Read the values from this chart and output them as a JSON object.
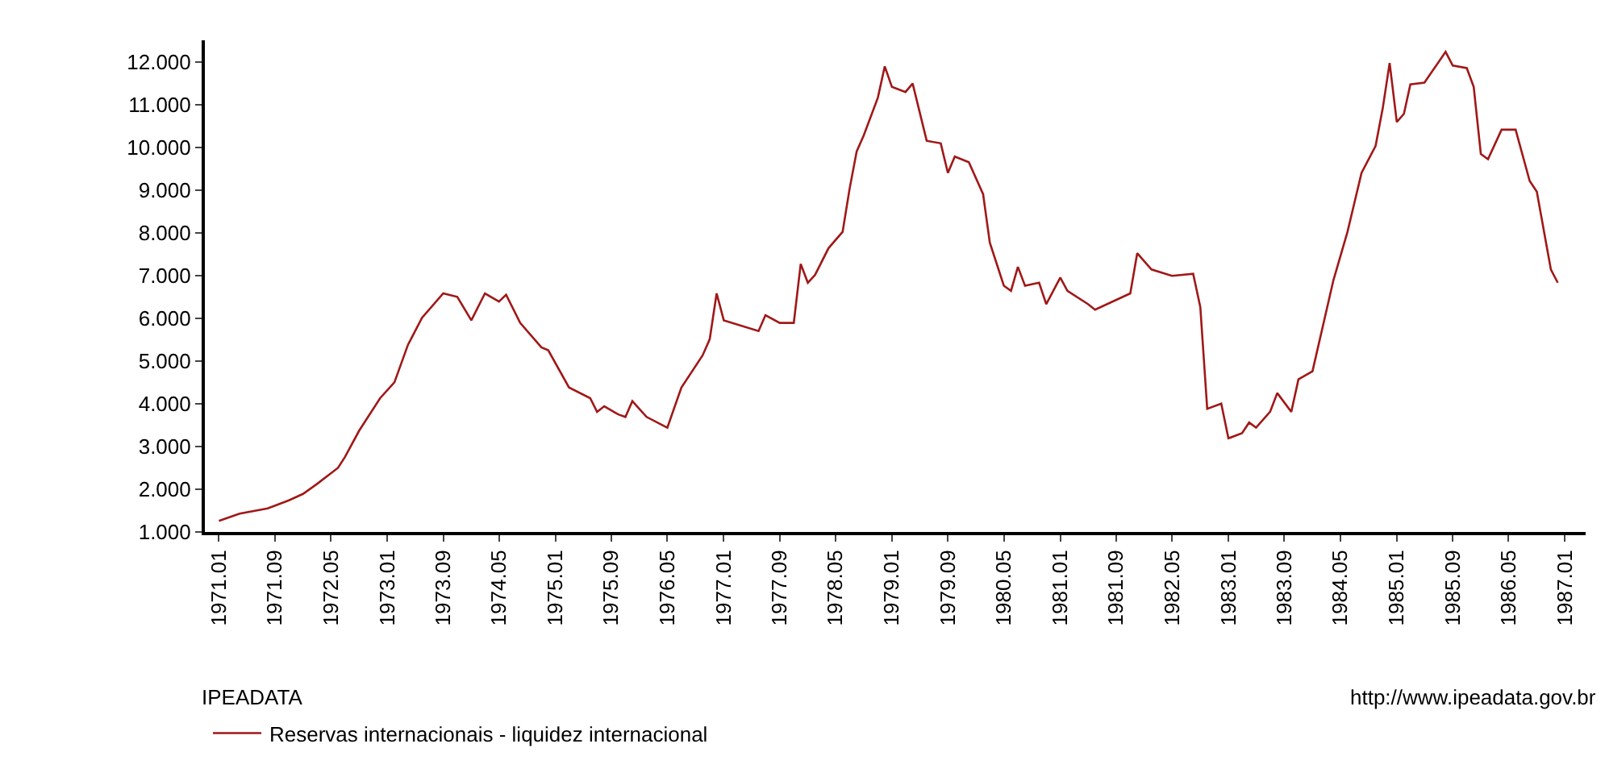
{
  "chart_data": {
    "type": "line",
    "annotations": [
      "IPEADATA",
      "http://www.ipeadata.gov.br"
    ],
    "x": [
      "1971-01",
      "1971-04",
      "1971-08",
      "1971-11",
      "1972-01",
      "1972-03",
      "1972-06",
      "1972-07",
      "1972-09",
      "1972-12",
      "1973-02",
      "1973-04",
      "1973-06",
      "1973-09",
      "1973-11",
      "1974-01",
      "1974-03",
      "1974-05",
      "1974-06",
      "1974-08",
      "1974-11",
      "1974-12",
      "1975-03",
      "1975-06",
      "1975-07",
      "1975-08",
      "1975-10",
      "1975-11",
      "1975-12",
      "1976-02",
      "1976-05",
      "1976-07",
      "1976-10",
      "1976-11",
      "1976-12",
      "1977-01",
      "1977-06",
      "1977-07",
      "1977-09",
      "1977-11",
      "1977-12",
      "1978-01",
      "1978-02",
      "1978-04",
      "1978-06",
      "1978-07",
      "1978-08",
      "1978-09",
      "1978-11",
      "1978-12",
      "1979-01",
      "1979-03",
      "1979-04",
      "1979-06",
      "1979-08",
      "1979-09",
      "1979-10",
      "1979-12",
      "1980-02",
      "1980-03",
      "1980-05",
      "1980-06",
      "1980-07",
      "1980-08",
      "1980-10",
      "1980-11",
      "1981-01",
      "1981-02",
      "1981-05",
      "1981-06",
      "1981-11",
      "1981-12",
      "1982-02",
      "1982-05",
      "1982-08",
      "1982-09",
      "1982-10",
      "1982-12",
      "1983-01",
      "1983-03",
      "1983-04",
      "1983-05",
      "1983-07",
      "1983-08",
      "1983-10",
      "1983-11",
      "1984-01",
      "1984-04",
      "1984-06",
      "1984-08",
      "1984-10",
      "1984-11",
      "1984-12",
      "1985-01",
      "1985-02",
      "1985-03",
      "1985-05",
      "1985-08",
      "1985-09",
      "1985-11",
      "1985-12",
      "1986-01",
      "1986-02",
      "1986-04",
      "1986-06",
      "1986-08",
      "1986-09",
      "1986-11",
      "1986-12"
    ],
    "series": [
      {
        "name": "Reservas internacionais - liquidez internacional",
        "color": "#a01818",
        "values": [
          1.26,
          1.43,
          1.55,
          1.74,
          1.89,
          2.12,
          2.5,
          2.75,
          3.37,
          4.13,
          4.5,
          5.38,
          6.01,
          6.58,
          6.5,
          5.95,
          6.58,
          6.39,
          6.55,
          5.89,
          5.32,
          5.25,
          4.38,
          4.13,
          3.81,
          3.94,
          3.75,
          3.69,
          4.06,
          3.69,
          3.44,
          4.38,
          5.13,
          5.51,
          6.58,
          5.95,
          5.7,
          6.07,
          5.89,
          5.89,
          7.27,
          6.83,
          7.01,
          7.64,
          8.02,
          9.02,
          9.9,
          10.28,
          11.16,
          11.89,
          11.41,
          11.29,
          11.49,
          10.15,
          10.09,
          9.4,
          9.78,
          9.65,
          8.9,
          7.77,
          6.76,
          6.64,
          7.2,
          6.76,
          6.83,
          6.33,
          6.95,
          6.64,
          6.33,
          6.2,
          6.58,
          7.52,
          7.14,
          6.99,
          7.04,
          6.26,
          3.88,
          4,
          3.19,
          3.31,
          3.56,
          3.44,
          3.81,
          4.25,
          3.81,
          4.57,
          4.76,
          6.89,
          8.02,
          9.4,
          10.03,
          10.91,
          11.97,
          10.59,
          10.78,
          11.47,
          11.51,
          12.23,
          11.91,
          11.85,
          11.41,
          9.84,
          9.72,
          10.41,
          10.41,
          9.21,
          8.96,
          7.14,
          6.83
        ]
      }
    ],
    "xlim": [
      "1970-11",
      "1987-04"
    ],
    "xticks": [
      {
        "value": "1971-01",
        "label": "1971.01"
      },
      {
        "value": "1971-09",
        "label": "1971.09"
      },
      {
        "value": "1972-05",
        "label": "1972.05"
      },
      {
        "value": "1973-01",
        "label": "1973.01"
      },
      {
        "value": "1973-09",
        "label": "1973.09"
      },
      {
        "value": "1974-05",
        "label": "1974.05"
      },
      {
        "value": "1975-01",
        "label": "1975.01"
      },
      {
        "value": "1975-09",
        "label": "1975.09"
      },
      {
        "value": "1976-05",
        "label": "1976.05"
      },
      {
        "value": "1977-01",
        "label": "1977.01"
      },
      {
        "value": "1977-09",
        "label": "1977.09"
      },
      {
        "value": "1978-05",
        "label": "1978.05"
      },
      {
        "value": "1979-01",
        "label": "1979.01"
      },
      {
        "value": "1979-09",
        "label": "1979.09"
      },
      {
        "value": "1980-05",
        "label": "1980.05"
      },
      {
        "value": "1981-01",
        "label": "1981.01"
      },
      {
        "value": "1981-09",
        "label": "1981.09"
      },
      {
        "value": "1982-05",
        "label": "1982.05"
      },
      {
        "value": "1983-01",
        "label": "1983.01"
      },
      {
        "value": "1983-09",
        "label": "1983.09"
      },
      {
        "value": "1984-05",
        "label": "1984.05"
      },
      {
        "value": "1985-01",
        "label": "1985.01"
      },
      {
        "value": "1985-09",
        "label": "1985.09"
      },
      {
        "value": "1986-05",
        "label": "1986.05"
      },
      {
        "value": "1987-01",
        "label": "1987.01"
      }
    ],
    "ylim": [
      1,
      12.5
    ],
    "yticks": [
      {
        "value": 1,
        "label": "1.000"
      },
      {
        "value": 2,
        "label": "2.000"
      },
      {
        "value": 3,
        "label": "3.000"
      },
      {
        "value": 4,
        "label": "4.000"
      },
      {
        "value": 5,
        "label": "5.000"
      },
      {
        "value": 6,
        "label": "6.000"
      },
      {
        "value": 7,
        "label": "7.000"
      },
      {
        "value": 8,
        "label": "8.000"
      },
      {
        "value": 9,
        "label": "9.000"
      },
      {
        "value": 10,
        "label": "10.000"
      },
      {
        "value": 11,
        "label": "11.000"
      },
      {
        "value": 12,
        "label": "12.000"
      }
    ],
    "grid": false,
    "legend": "bottom left",
    "marker": "none",
    "line_style": "solid"
  }
}
